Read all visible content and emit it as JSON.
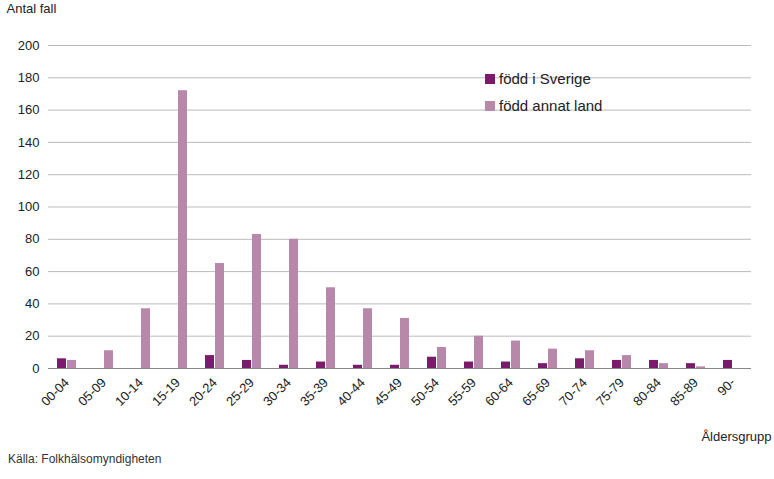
{
  "chart_data": {
    "type": "bar",
    "y_label": "Antal fall",
    "x_label": "Åldersgrupp",
    "caption": "Källa: Folkhälsomyndigheten",
    "categories": [
      "00-04",
      "05-09",
      "10-14",
      "15-19",
      "20-24",
      "25-29",
      "30-34",
      "35-39",
      "40-44",
      "45-49",
      "50-54",
      "55-59",
      "60-64",
      "65-69",
      "70-74",
      "75-79",
      "80-84",
      "85-89",
      "90-"
    ],
    "series": [
      {
        "name": "född i Sverige",
        "color": "#7a1b6c",
        "values": [
          6,
          0,
          0,
          0,
          8,
          5,
          2,
          4,
          2,
          2,
          7,
          4,
          4,
          3,
          6,
          5,
          5,
          3,
          5
        ]
      },
      {
        "name": "född annat land",
        "color": "#b888ab",
        "values": [
          5,
          11,
          37,
          172,
          65,
          83,
          80,
          50,
          37,
          31,
          13,
          20,
          17,
          12,
          11,
          8,
          3,
          1,
          0
        ]
      }
    ],
    "ylim": [
      0,
      200
    ],
    "yticks": [
      0,
      20,
      40,
      60,
      80,
      100,
      120,
      140,
      160,
      180,
      200
    ],
    "grid": true,
    "legend": "top-right"
  }
}
